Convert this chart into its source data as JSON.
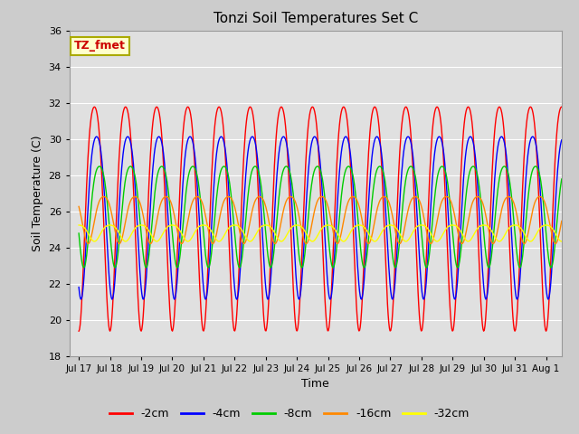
{
  "title": "Tonzi Soil Temperatures Set C",
  "xlabel": "Time",
  "ylabel": "Soil Temperature (C)",
  "ylim": [
    18,
    36
  ],
  "yticks": [
    18,
    20,
    22,
    24,
    26,
    28,
    30,
    32,
    34,
    36
  ],
  "n_days": 15.5,
  "n_points": 744,
  "colors": {
    "-2cm": "#ff0000",
    "-4cm": "#0000ff",
    "-8cm": "#00cc00",
    "-16cm": "#ff8800",
    "-32cm": "#ffff00"
  },
  "depths": [
    "-2cm",
    "-4cm",
    "-8cm",
    "-16cm",
    "-32cm"
  ],
  "amplitudes": [
    6.2,
    4.5,
    2.8,
    1.3,
    0.45
  ],
  "phase_lags_days": [
    0.0,
    0.07,
    0.16,
    0.3,
    0.5
  ],
  "mean_temps": [
    26.5,
    26.3,
    26.1,
    25.7,
    24.85
  ],
  "background_color": "#cccccc",
  "plot_bg_color": "#e0e0e0",
  "annotation_text": "TZ_fmet",
  "annotation_bg": "#ffffcc",
  "annotation_border": "#aaaa00",
  "x_tick_labels": [
    "Jul 17",
    "Jul 18",
    "Jul 19",
    "Jul 20",
    "Jul 21",
    "Jul 22",
    "Jul 23",
    "Jul 24",
    "Jul 25",
    "Jul 26",
    "Jul 27",
    "Jul 28",
    "Jul 29",
    "Jul 30",
    "Jul 31",
    "Aug 1"
  ],
  "x_tick_positions": [
    0,
    1,
    2,
    3,
    4,
    5,
    6,
    7,
    8,
    9,
    10,
    11,
    12,
    13,
    14,
    15
  ],
  "linewidth": 1.0,
  "grid_color": "#ffffff",
  "figsize": [
    6.4,
    4.8
  ],
  "dpi": 100
}
